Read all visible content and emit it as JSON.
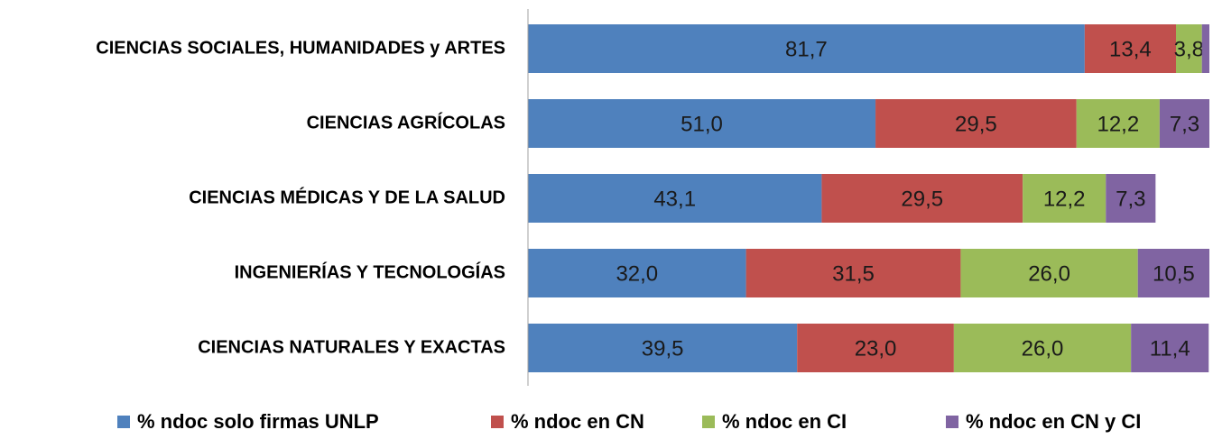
{
  "chart_data": {
    "type": "stacked_horizontal_bar",
    "categories": [
      "CIENCIAS SOCIALES, HUMANIDADES y ARTES",
      "CIENCIAS AGRÍCOLAS",
      "CIENCIAS MÉDICAS Y DE LA SALUD",
      "INGENIERÍAS Y TECNOLOGÍAS",
      "CIENCIAS NATURALES Y EXACTAS"
    ],
    "series": [
      {
        "name": "% ndoc solo firmas UNLP",
        "color": "#4f81bd",
        "values": [
          81.7,
          51.0,
          43.1,
          32.0,
          39.5
        ],
        "value_labels": [
          "81,7",
          "51,0",
          "43,1",
          "32,0",
          "39,5"
        ]
      },
      {
        "name": "% ndoc en CN",
        "color": "#c0504d",
        "values": [
          13.4,
          29.5,
          29.5,
          31.5,
          23.0
        ],
        "value_labels": [
          "13,4",
          "29,5",
          "29,5",
          "31,5",
          "23,0"
        ]
      },
      {
        "name": "% ndoc en CI",
        "color": "#9bbb59",
        "values": [
          3.8,
          12.2,
          12.2,
          26.0,
          26.0
        ],
        "value_labels": [
          "3,8",
          "12,2",
          "12,2",
          "26,0",
          "26,0"
        ]
      },
      {
        "name": "% ndoc en CN y CI",
        "color": "#8064a2",
        "values": [
          1.1,
          7.3,
          7.3,
          10.5,
          11.4
        ],
        "value_labels": [
          null,
          "7,3",
          "7,3",
          "10,5",
          "11,4"
        ]
      }
    ],
    "xlim": [
      0,
      100
    ],
    "legend": "bottom"
  }
}
